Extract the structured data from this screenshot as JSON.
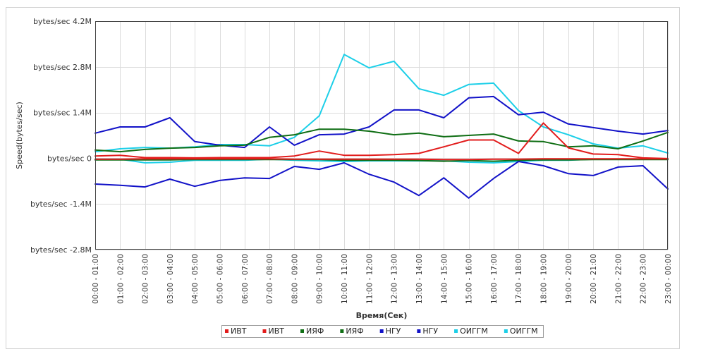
{
  "chart_data": {
    "type": "line",
    "xlabel": "Время(Сек)",
    "ylabel": "Speed(bytes/sec)",
    "ylim": [
      -2800000,
      4200000
    ],
    "y_tick_values": [
      4200000,
      2800000,
      1400000,
      0,
      -1400000,
      -2800000
    ],
    "y_ticks": [
      "bytes/sec 4.2M",
      "bytes/sec 2.8M",
      "bytes/sec 1.4M",
      "bytes/sec 0",
      "bytes/sec -1.4M",
      "bytes/sec -2.8M"
    ],
    "grid": true,
    "legend": "bottom",
    "categories": [
      "00:00 - 01:00",
      "01:00 - 02:00",
      "02:00 - 03:00",
      "03:00 - 04:00",
      "04:00 - 05:00",
      "05:00 - 06:00",
      "06:00 - 07:00",
      "07:00 - 08:00",
      "08:00 - 09:00",
      "09:00 - 10:00",
      "10:00 - 11:00",
      "11:00 - 12:00",
      "12:00 - 13:00",
      "13:00 - 14:00",
      "14:00 - 15:00",
      "15:00 - 16:00",
      "16:00 - 17:00",
      "17:00 - 18:00",
      "18:00 - 19:00",
      "19:00 - 20:00",
      "20:00 - 21:00",
      "21:00 - 22:00",
      "22:00 - 23:00",
      "23:00 - 00:00"
    ],
    "series": [
      {
        "name": "ИВТ",
        "color": "#e21c1c",
        "values": [
          70000,
          90000,
          20000,
          20000,
          10000,
          20000,
          20000,
          20000,
          70000,
          220000,
          90000,
          90000,
          110000,
          150000,
          350000,
          560000,
          560000,
          150000,
          1080000,
          320000,
          130000,
          110000,
          10000,
          -10000
        ]
      },
      {
        "name": "ИВТ",
        "color": "#e21c1c",
        "values": [
          -30000,
          -30000,
          -20000,
          -20000,
          -20000,
          -20000,
          -20000,
          -20000,
          -30000,
          -30000,
          -30000,
          -30000,
          -30000,
          -30000,
          -40000,
          -40000,
          -30000,
          -30000,
          -20000,
          -20000,
          -20000,
          -20000,
          -20000,
          -20000
        ]
      },
      {
        "name": "ИЯФ",
        "color": "#0f6e14",
        "values": [
          250000,
          200000,
          270000,
          310000,
          330000,
          380000,
          400000,
          640000,
          720000,
          890000,
          890000,
          830000,
          720000,
          770000,
          660000,
          700000,
          740000,
          530000,
          510000,
          350000,
          380000,
          290000,
          530000,
          790000
        ]
      },
      {
        "name": "ИЯФ",
        "color": "#0f6e14",
        "values": [
          -50000,
          -50000,
          -50000,
          -50000,
          -40000,
          -40000,
          -40000,
          -40000,
          -40000,
          -40000,
          -60000,
          -60000,
          -60000,
          -70000,
          -90000,
          -70000,
          -90000,
          -60000,
          -50000,
          -50000,
          -40000,
          -40000,
          -40000,
          -40000
        ]
      },
      {
        "name": "НГУ",
        "color": "#1212c8",
        "values": [
          770000,
          960000,
          960000,
          1240000,
          510000,
          400000,
          330000,
          960000,
          400000,
          720000,
          740000,
          960000,
          1480000,
          1480000,
          1240000,
          1850000,
          1890000,
          1330000,
          1410000,
          1050000,
          940000,
          830000,
          740000,
          850000
        ]
      },
      {
        "name": "НГУ",
        "color": "#1212c8",
        "values": [
          -790000,
          -830000,
          -880000,
          -640000,
          -860000,
          -680000,
          -600000,
          -620000,
          -250000,
          -340000,
          -140000,
          -490000,
          -730000,
          -1140000,
          -600000,
          -1220000,
          -620000,
          -100000,
          -230000,
          -470000,
          -530000,
          -270000,
          -230000,
          -940000
        ]
      },
      {
        "name": "ОИГГМ",
        "color": "#1ccfe8",
        "values": [
          200000,
          290000,
          330000,
          310000,
          350000,
          420000,
          420000,
          380000,
          640000,
          1300000,
          3180000,
          2770000,
          2970000,
          2130000,
          1930000,
          2260000,
          2300000,
          1460000,
          960000,
          720000,
          440000,
          310000,
          380000,
          160000
        ]
      },
      {
        "name": "ОИГГМ",
        "color": "#1ccfe8",
        "values": [
          -30000,
          -30000,
          -140000,
          -120000,
          -60000,
          -60000,
          -60000,
          -30000,
          -60000,
          -80000,
          -100000,
          -80000,
          -80000,
          -80000,
          -80000,
          -120000,
          -140000,
          -100000,
          -60000,
          -60000,
          -30000,
          -30000,
          -30000,
          -30000
        ]
      }
    ]
  }
}
